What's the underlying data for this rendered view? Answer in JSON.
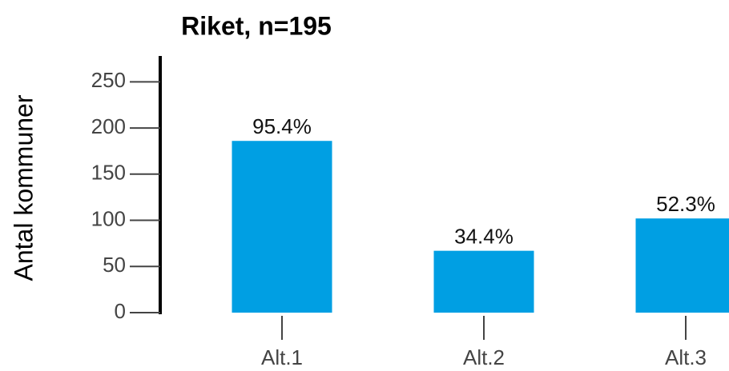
{
  "chart_data": {
    "type": "bar",
    "title": "Riket, n=195",
    "y_label": "Antal kommuner",
    "categories": [
      "Alt.1",
      "Alt.2",
      "Alt.3"
    ],
    "values": [
      186,
      67,
      102
    ],
    "value_labels": [
      "95.4%",
      "34.4%",
      "52.3%"
    ],
    "color": "#009fe3",
    "ylim": [
      0,
      278
    ],
    "yticks": [
      0,
      50,
      100,
      150,
      200,
      250
    ],
    "grid": false
  }
}
